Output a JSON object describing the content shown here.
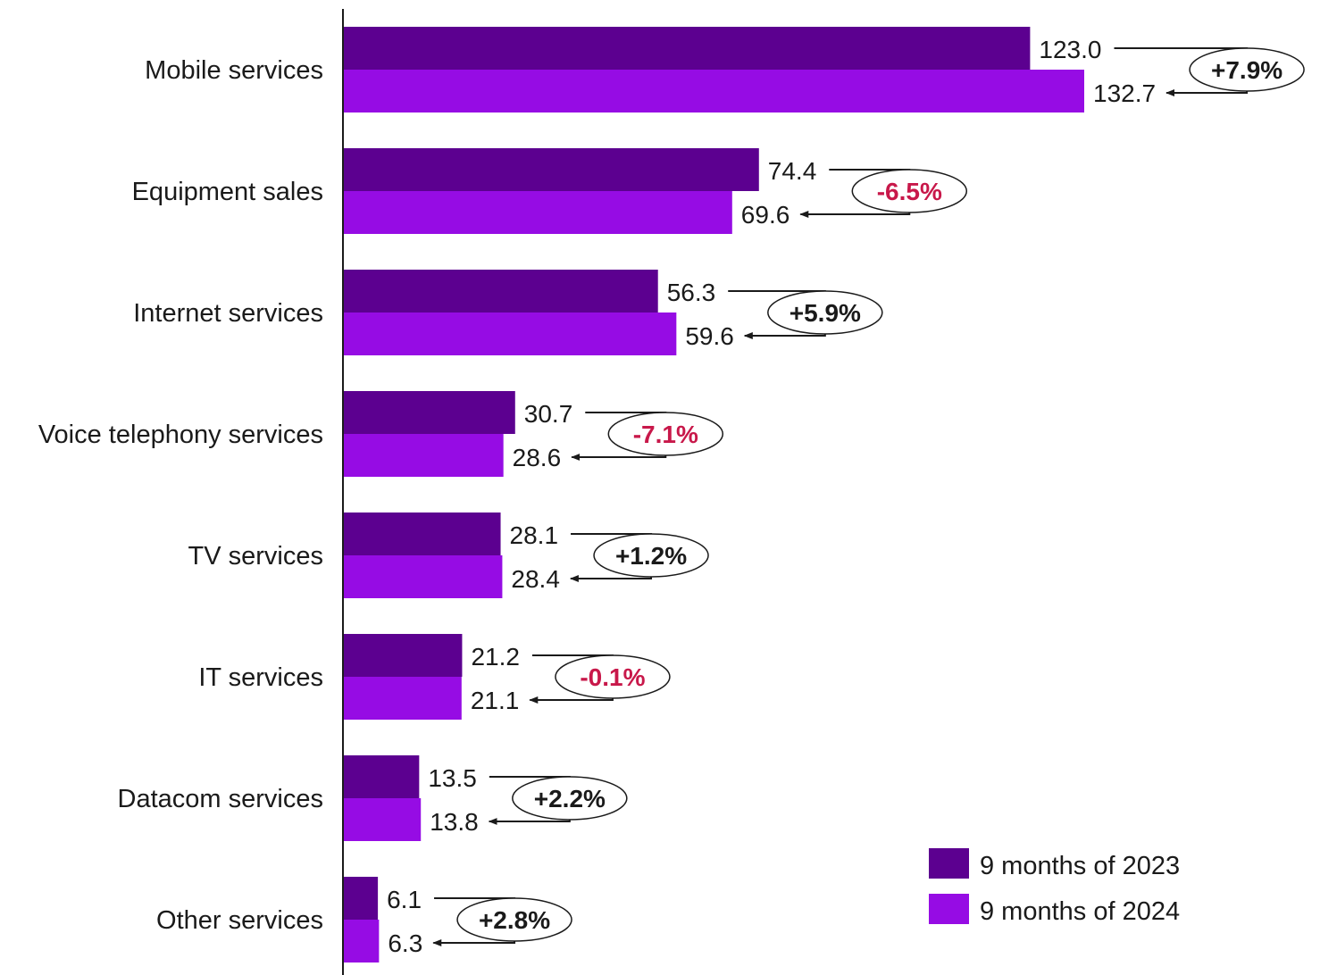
{
  "chart_data": {
    "type": "bar",
    "orientation": "horizontal",
    "title": "",
    "xlabel": "",
    "ylabel": "",
    "categories": [
      "Mobile services",
      "Equipment sales",
      "Internet services",
      "Voice telephony services",
      "TV services",
      "IT services",
      "Datacom services",
      "Other services"
    ],
    "series": [
      {
        "name": "9 months of 2023",
        "color": "#5c0090",
        "values": [
          123.0,
          74.4,
          56.3,
          30.7,
          28.1,
          21.2,
          13.5,
          6.1
        ],
        "labels": [
          "123.0",
          "74.4",
          "56.3",
          "30.7",
          "28.1",
          "21.2",
          "13.5",
          "6.1"
        ]
      },
      {
        "name": "9 months of 2024",
        "color": "#960ce4",
        "values": [
          132.7,
          69.6,
          59.6,
          28.6,
          28.4,
          21.1,
          13.8,
          6.3
        ],
        "labels": [
          "132.7",
          "69.6",
          "59.6",
          "28.6",
          "28.4",
          "21.1",
          "13.8",
          "6.3"
        ]
      }
    ],
    "changes": [
      "+7.9%",
      "-6.5%",
      "+5.9%",
      "-7.1%",
      "+1.2%",
      "-0.1%",
      "+2.2%",
      "+2.8%"
    ],
    "change_colors": {
      "positive": "#1a1a1a",
      "negative": "#c8184a"
    },
    "xlim": [
      0,
      150
    ],
    "grid": false,
    "legend_position": "bottom-right"
  }
}
